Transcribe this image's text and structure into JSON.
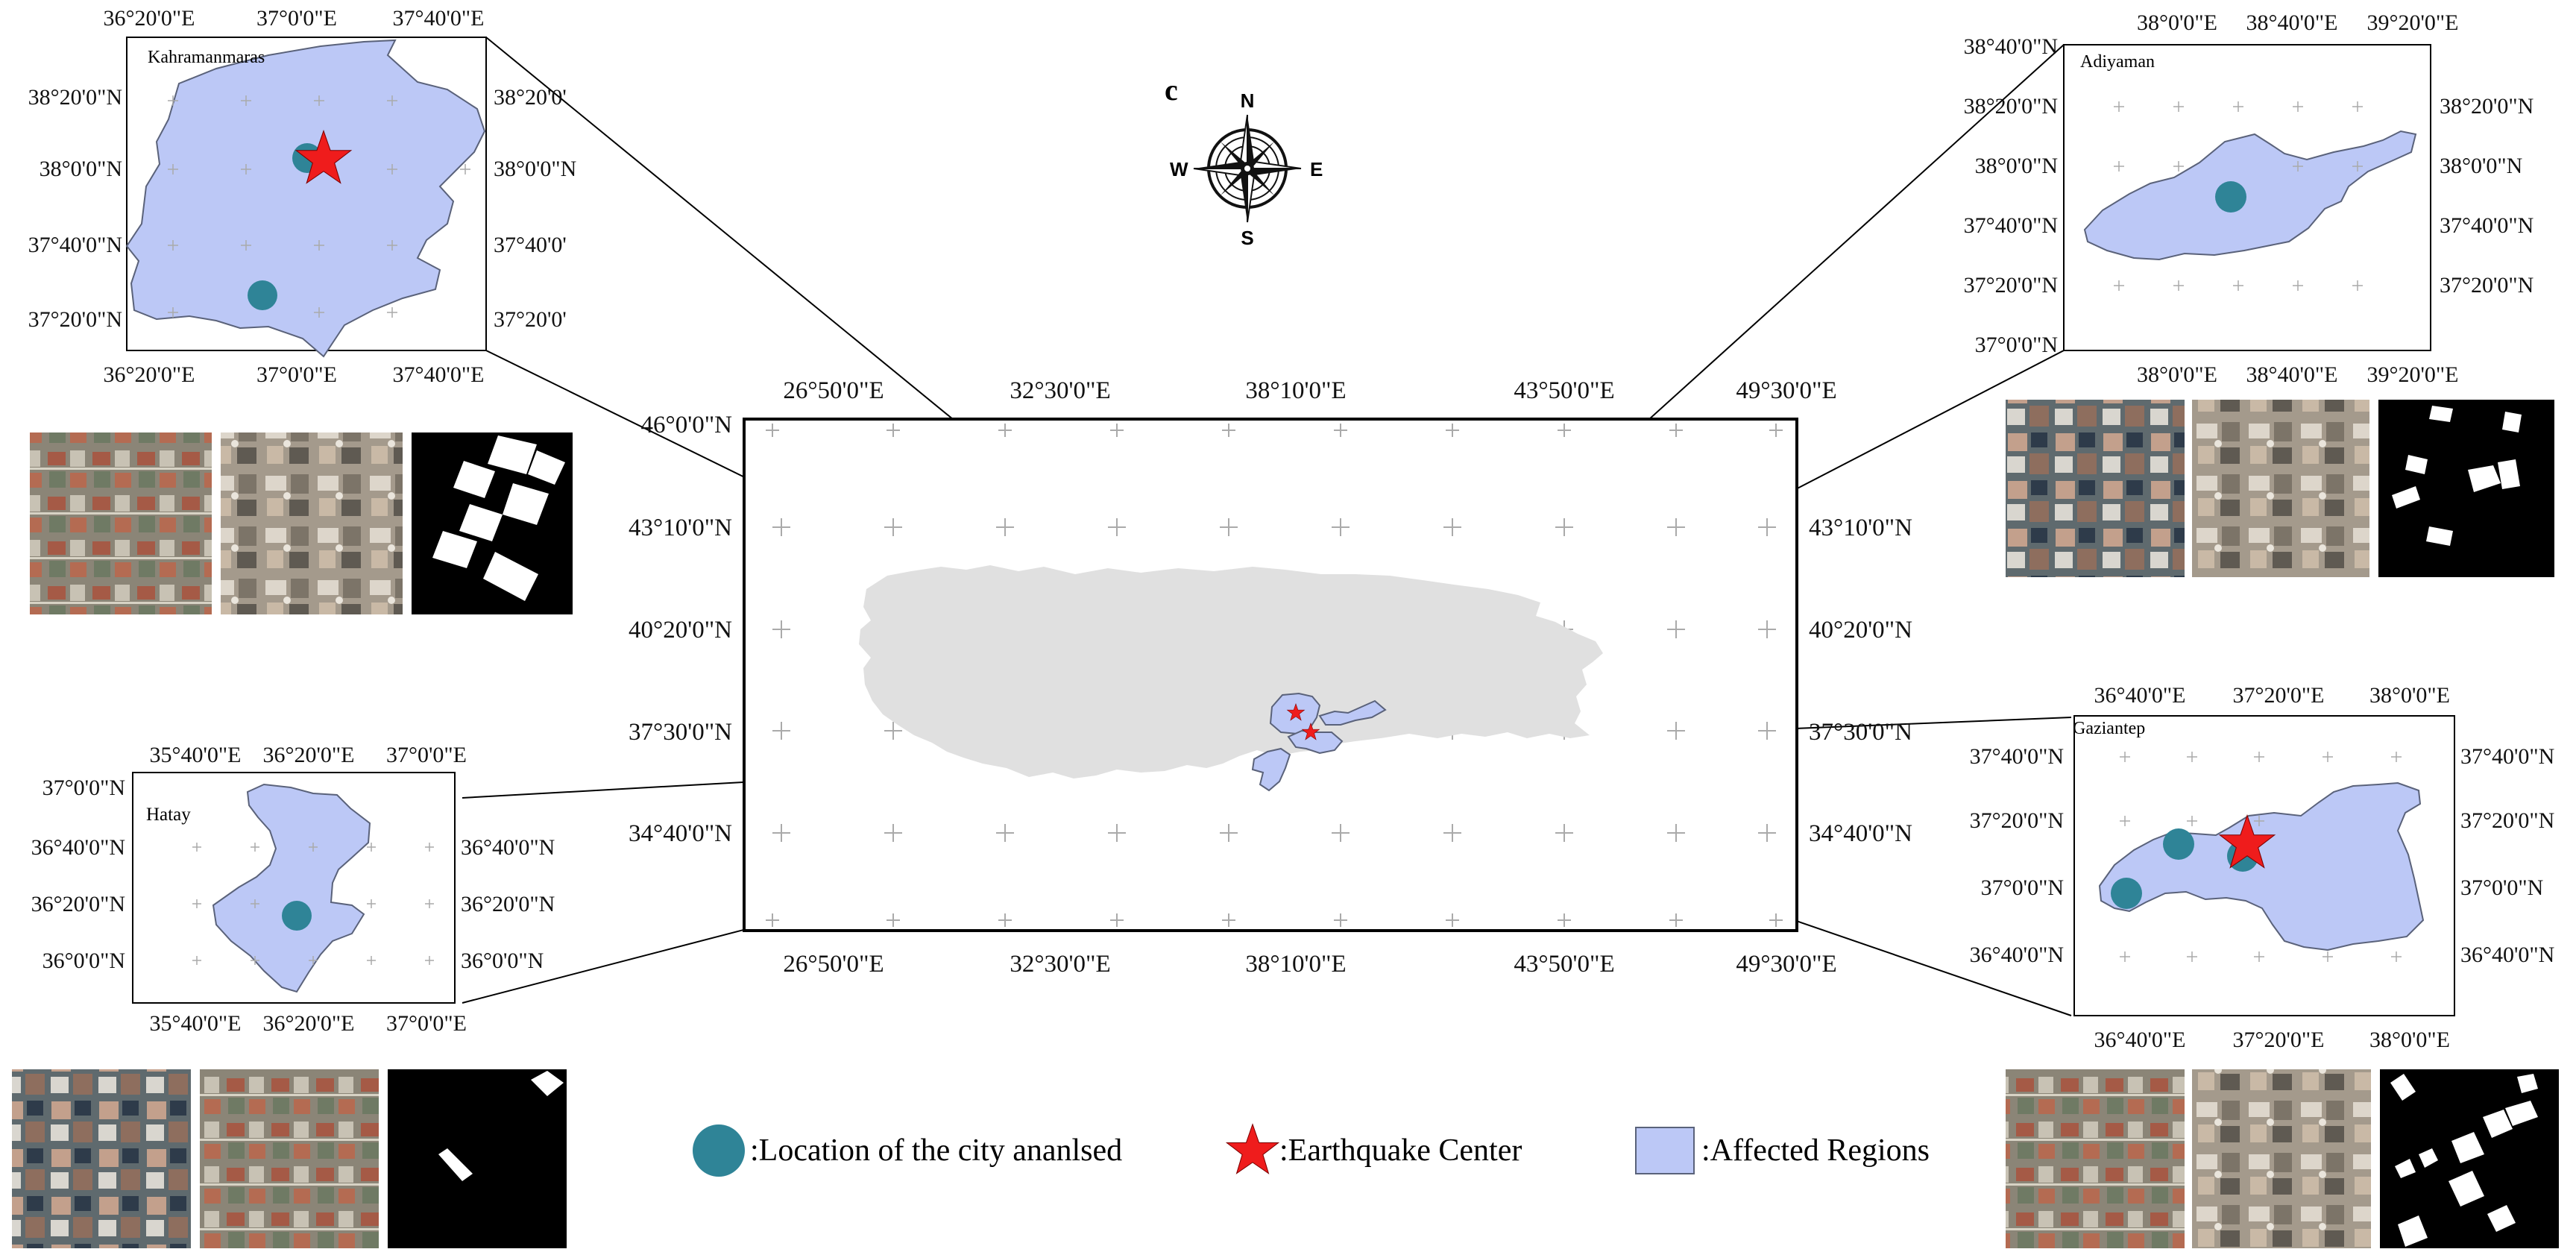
{
  "panel_label": "c",
  "compass": {
    "n": "N",
    "s": "S",
    "e": "E",
    "w": "W"
  },
  "colors": {
    "affected": "#bcc8f6",
    "affected_stroke": "#5a627a",
    "city": "#2f8497",
    "star": "#ef1c1c",
    "turkey": "#e0e0e0",
    "frame": "#000000"
  },
  "main_map": {
    "top_ticks": [
      "26°50'0\"E",
      "32°30'0\"E",
      "38°10'0\"E",
      "43°50'0\"E",
      "49°30'0\"E"
    ],
    "bottom_ticks": [
      "26°50'0\"E",
      "32°30'0\"E",
      "38°10'0\"E",
      "43°50'0\"E",
      "49°30'0\"E"
    ],
    "left_ticks": [
      "46°0'0\"N",
      "43°10'0\"N",
      "40°20'0\"N",
      "37°30'0\"N",
      "34°40'0\"N"
    ],
    "right_ticks": [
      "43°10'0\"N",
      "40°20'0\"N",
      "37°30'0\"N",
      "34°40'0\"N"
    ]
  },
  "insets": {
    "kahramanmaras": {
      "name": "Kahramanmaras",
      "top_ticks": [
        "36°20'0\"E",
        "37°0'0\"E",
        "37°40'0\"E"
      ],
      "bottom_ticks": [
        "36°20'0\"E",
        "37°0'0\"E",
        "37°40'0\"E"
      ],
      "left_ticks": [
        "38°20'0\"N",
        "38°0'0\"N",
        "37°40'0\"N",
        "37°20'0\"N"
      ],
      "right_ticks": [
        "38°20'0'",
        "38°0'0\"N",
        "37°40'0'",
        "37°20'0'"
      ]
    },
    "adiyaman": {
      "name": "Adiyaman",
      "top_ticks": [
        "38°0'0\"E",
        "38°40'0\"E",
        "39°20'0\"E"
      ],
      "bottom_ticks": [
        "38°0'0\"E",
        "38°40'0\"E",
        "39°20'0\"E"
      ],
      "left_ticks": [
        "38°40'0\"N",
        "38°20'0\"N",
        "38°0'0\"N",
        "37°40'0\"N",
        "37°20'0\"N",
        "37°0'0\"N"
      ],
      "right_ticks": [
        "38°20'0\"N",
        "38°0'0\"N",
        "37°40'0\"N",
        "37°20'0\"N"
      ]
    },
    "hatay": {
      "name": "Hatay",
      "top_ticks": [
        "35°40'0\"E",
        "36°20'0\"E",
        "37°0'0\"E"
      ],
      "bottom_ticks": [
        "35°40'0\"E",
        "36°20'0\"E",
        "37°0'0\"E"
      ],
      "left_ticks": [
        "37°0'0\"N",
        "36°40'0\"N",
        "36°20'0\"N",
        "36°0'0\"N"
      ],
      "right_ticks": [
        "36°40'0\"N",
        "36°20'0\"N",
        "36°0'0\"N"
      ]
    },
    "gaziantep": {
      "name": "Gaziantep",
      "top_ticks": [
        "36°40'0\"E",
        "37°20'0\"E",
        "38°0'0\"E"
      ],
      "bottom_ticks": [
        "36°40'0\"E",
        "37°20'0\"E",
        "38°0'0\"E"
      ],
      "left_ticks": [
        "37°40'0\"N",
        "37°20'0\"N",
        "37°0'0\"N",
        "36°40'0\"N"
      ],
      "right_ticks": [
        "37°40'0\"N",
        "37°20'0\"N",
        "37°0'0\"N",
        "36°40'0\"N"
      ]
    }
  },
  "legend": {
    "city": ":Location of the city ananlsed",
    "star": ":Earthquake Center",
    "region": ":Affected Regions"
  }
}
